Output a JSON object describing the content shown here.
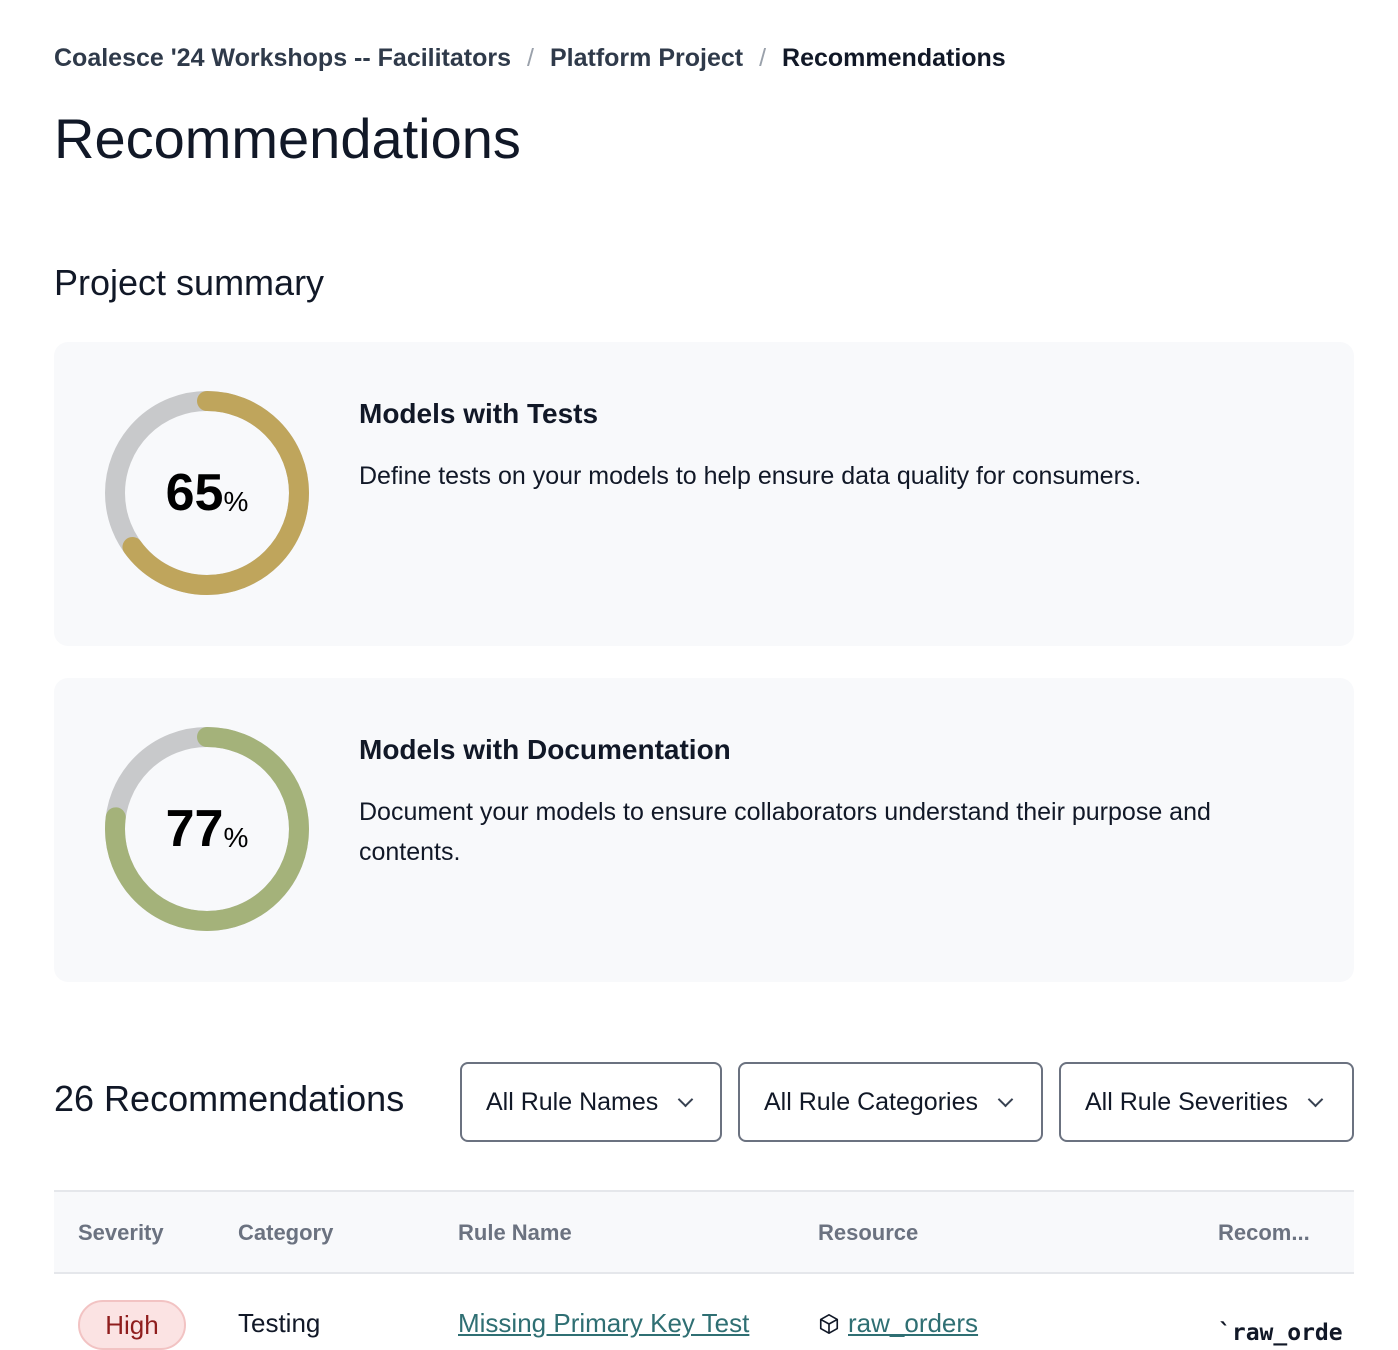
{
  "breadcrumb": {
    "items": [
      "Coalesce '24 Workshops -- Facilitators",
      "Platform Project",
      "Recommendations"
    ],
    "separator": "/"
  },
  "page_title": "Recommendations",
  "summary": {
    "heading": "Project summary",
    "cards": [
      {
        "title": "Models with Tests",
        "description": "Define tests on your models to help ensure data quality for consumers.",
        "value": "65",
        "unit": "%",
        "percent": 65,
        "color": "#BFA55C"
      },
      {
        "title": "Models with Documentation",
        "description": "Document your models to ensure collaborators understand their purpose and contents.",
        "value": "77",
        "unit": "%",
        "percent": 77,
        "color": "#A4B27A"
      }
    ],
    "track_color": "#C8C9CB"
  },
  "recommendations": {
    "count_label": "26 Recommendations",
    "filters": [
      "All Rule Names",
      "All Rule Categories",
      "All Rule Severities"
    ],
    "columns": [
      "Severity",
      "Category",
      "Rule Name",
      "Resource",
      "Recom..."
    ],
    "rows": [
      {
        "severity": "High",
        "category": "Testing",
        "rule_name": "Missing Primary Key Test",
        "resource": "raw_orders",
        "resource_icon": "cube-icon",
        "recommendation": "`raw_orde"
      }
    ]
  }
}
